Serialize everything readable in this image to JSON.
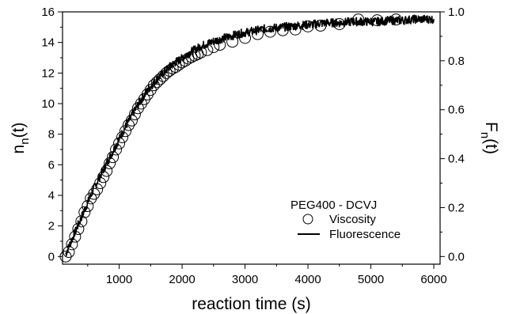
{
  "chart_data": {
    "type": "scatter",
    "title": "",
    "xlabel": "reaction time (s)",
    "ylabel": {
      "main": "n",
      "sub": "n",
      "suffix": "(t)"
    },
    "y2label": {
      "main": "F",
      "sub": "n",
      "suffix": "(t)"
    },
    "xlim": [
      100,
      6100
    ],
    "ylim": [
      -0.5,
      16
    ],
    "y2lim": [
      -0.03125,
      1.0
    ],
    "xticks": [
      1000,
      2000,
      3000,
      4000,
      5000,
      6000
    ],
    "xtick_labels": [
      "1000",
      "2000",
      "3000",
      "4000",
      "5000",
      "6000"
    ],
    "yticks": [
      0,
      2,
      4,
      6,
      8,
      10,
      12,
      14,
      16
    ],
    "ytick_labels": [
      "0",
      "2",
      "4",
      "6",
      "8",
      "10",
      "12",
      "14",
      "16"
    ],
    "y2ticks": [
      0.0,
      0.2,
      0.4,
      0.6,
      0.8,
      1.0
    ],
    "y2tick_labels": [
      "0.0",
      "0.2",
      "0.4",
      "0.6",
      "0.8",
      "1.0"
    ],
    "grid": false,
    "legend": {
      "placement": "bottom-right",
      "title": "PEG400 - DCVJ",
      "entries": [
        {
          "label": "Viscosity",
          "marker": "open-circle"
        },
        {
          "label": "Fluorescence",
          "marker": "line"
        }
      ]
    },
    "series": [
      {
        "name": "Viscosity",
        "axis": "left",
        "marker": "open-circle",
        "x": [
          150,
          200,
          250,
          300,
          350,
          400,
          450,
          500,
          550,
          600,
          650,
          700,
          750,
          800,
          850,
          900,
          950,
          1000,
          1050,
          1100,
          1150,
          1200,
          1250,
          1300,
          1350,
          1400,
          1450,
          1500,
          1550,
          1600,
          1650,
          1700,
          1750,
          1800,
          1850,
          1900,
          1950,
          2000,
          2050,
          2100,
          2150,
          2200,
          2250,
          2300,
          2400,
          2500,
          2600,
          2800,
          3000,
          3200,
          3400,
          3600,
          3800,
          4000,
          4200,
          4500,
          4800,
          5100,
          5400
        ],
        "y": [
          0.0,
          0.3,
          0.8,
          1.3,
          1.8,
          2.3,
          2.9,
          3.3,
          3.8,
          4.1,
          4.4,
          4.8,
          5.2,
          5.6,
          6.1,
          6.5,
          7.0,
          7.4,
          7.8,
          8.2,
          8.6,
          8.9,
          9.3,
          9.7,
          10.0,
          10.3,
          10.6,
          10.9,
          11.2,
          11.4,
          11.6,
          11.8,
          12.0,
          12.15,
          12.3,
          12.4,
          12.55,
          12.7,
          12.8,
          12.95,
          13.05,
          13.15,
          13.25,
          13.35,
          13.5,
          13.7,
          13.85,
          14.05,
          14.3,
          14.55,
          14.7,
          14.8,
          14.85,
          15.05,
          15.1,
          15.2,
          15.5,
          15.45,
          15.5
        ]
      },
      {
        "name": "Fluorescence",
        "axis": "right",
        "marker": "line",
        "x": [
          150,
          200,
          300,
          400,
          500,
          600,
          700,
          800,
          900,
          1000,
          1100,
          1200,
          1300,
          1400,
          1500,
          1600,
          1700,
          1800,
          1900,
          2000,
          2100,
          2200,
          2300,
          2400,
          2500,
          2700,
          2900,
          3100,
          3300,
          3500,
          3700,
          3900,
          4100,
          4300,
          4500,
          4700,
          4900,
          5100,
          5300,
          5500,
          5700,
          5900,
          6000
        ],
        "y": [
          0.01,
          0.04,
          0.1,
          0.16,
          0.22,
          0.28,
          0.33,
          0.38,
          0.43,
          0.48,
          0.53,
          0.575,
          0.62,
          0.66,
          0.695,
          0.725,
          0.75,
          0.775,
          0.795,
          0.81,
          0.83,
          0.845,
          0.86,
          0.87,
          0.88,
          0.895,
          0.91,
          0.92,
          0.93,
          0.935,
          0.94,
          0.945,
          0.95,
          0.955,
          0.955,
          0.96,
          0.96,
          0.96,
          0.965,
          0.965,
          0.97,
          0.97,
          0.97
        ]
      }
    ]
  }
}
